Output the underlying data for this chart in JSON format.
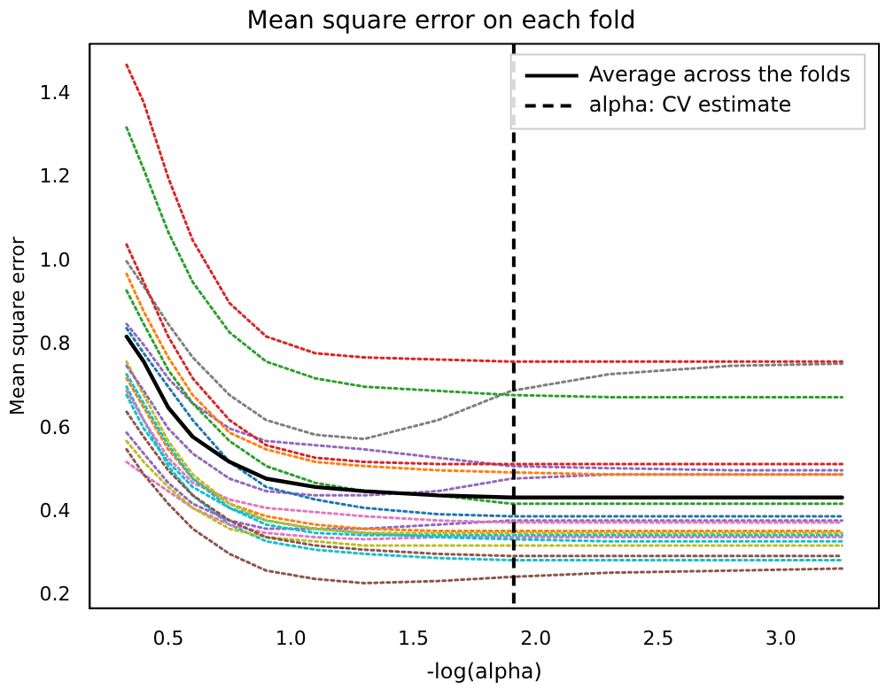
{
  "chart_data": {
    "type": "line",
    "title": "Mean square error on each fold",
    "xlabel": "-log(alpha)",
    "ylabel": "Mean square error",
    "x": [
      0.33,
      0.4,
      0.5,
      0.6,
      0.75,
      0.9,
      1.1,
      1.3,
      1.6,
      1.9,
      2.3,
      2.8,
      3.25
    ],
    "xlim": [
      0.18,
      3.4
    ],
    "xticks": [
      0.5,
      {
        "value": 1,
        "label": "1.0"
      },
      1.5,
      {
        "value": 2,
        "label": "2.0"
      },
      2.5,
      {
        "value": 3,
        "label": "3.0"
      }
    ],
    "ylim": [
      0.17,
      1.52
    ],
    "yticks": [
      0.2,
      0.4,
      0.6,
      0.8,
      {
        "value": 1,
        "label": "1.0"
      },
      1.2,
      1.4
    ],
    "grid": false,
    "legend": "top right",
    "marker": "none",
    "ref_lines": [
      {
        "axis": "x",
        "value": 1.91,
        "label": "alpha: CV estimate",
        "color": "#000000",
        "line_style": "dashed"
      }
    ],
    "series": [
      {
        "color": "#d62728",
        "line_style": "dotted",
        "values": [
          1.47,
          1.38,
          1.2,
          1.05,
          0.9,
          0.82,
          0.78,
          0.77,
          0.765,
          0.76,
          0.76,
          0.76,
          0.76
        ]
      },
      {
        "color": "#2ca02c",
        "line_style": "dotted",
        "values": [
          1.32,
          1.22,
          1.07,
          0.95,
          0.83,
          0.76,
          0.72,
          0.7,
          0.69,
          0.68,
          0.675,
          0.675,
          0.675
        ]
      },
      {
        "color": "#d62728",
        "line_style": "dotted",
        "values": [
          1.04,
          0.95,
          0.82,
          0.72,
          0.62,
          0.56,
          0.53,
          0.52,
          0.515,
          0.515,
          0.515,
          0.515,
          0.515
        ]
      },
      {
        "color": "#7f7f7f",
        "line_style": "dotted",
        "values": [
          1.0,
          0.94,
          0.85,
          0.77,
          0.68,
          0.62,
          0.585,
          0.575,
          0.62,
          0.69,
          0.73,
          0.75,
          0.755
        ]
      },
      {
        "color": "#ff7f0e",
        "line_style": "dotted",
        "values": [
          0.97,
          0.88,
          0.77,
          0.68,
          0.59,
          0.55,
          0.52,
          0.51,
          0.5,
          0.495,
          0.49,
          0.49,
          0.49
        ]
      },
      {
        "color": "#2ca02c",
        "line_style": "dotted",
        "values": [
          0.93,
          0.85,
          0.74,
          0.66,
          0.57,
          0.51,
          0.47,
          0.45,
          0.44,
          0.42,
          0.42,
          0.42,
          0.42
        ]
      },
      {
        "color": "#9467bd",
        "line_style": "dotted",
        "values": [
          0.85,
          0.8,
          0.72,
          0.66,
          0.6,
          0.57,
          0.56,
          0.55,
          0.53,
          0.51,
          0.505,
          0.5,
          0.5
        ]
      },
      {
        "color": "#1f77b4",
        "line_style": "dotted",
        "values": [
          0.84,
          0.78,
          0.7,
          0.62,
          0.52,
          0.46,
          0.43,
          0.41,
          0.395,
          0.39,
          0.39,
          0.39,
          0.39
        ]
      },
      {
        "color": "#9467bd",
        "line_style": "dotted",
        "values": [
          0.75,
          0.69,
          0.6,
          0.54,
          0.48,
          0.45,
          0.44,
          0.44,
          0.45,
          0.48,
          0.49,
          0.49,
          0.49
        ]
      },
      {
        "color": "#bcbd22",
        "line_style": "dotted",
        "values": [
          0.76,
          0.68,
          0.57,
          0.49,
          0.42,
          0.38,
          0.36,
          0.35,
          0.35,
          0.35,
          0.35,
          0.35,
          0.35
        ]
      },
      {
        "color": "#17becf",
        "line_style": "dotted",
        "values": [
          0.73,
          0.66,
          0.56,
          0.48,
          0.41,
          0.37,
          0.35,
          0.345,
          0.345,
          0.345,
          0.345,
          0.345,
          0.345
        ]
      },
      {
        "color": "#ff7f0e",
        "line_style": "dotted",
        "values": [
          0.72,
          0.65,
          0.55,
          0.48,
          0.42,
          0.39,
          0.37,
          0.36,
          0.355,
          0.355,
          0.355,
          0.355,
          0.355
        ]
      },
      {
        "color": "#17becf",
        "line_style": "dotted",
        "values": [
          0.68,
          0.6,
          0.52,
          0.46,
          0.41,
          0.38,
          0.36,
          0.35,
          0.34,
          0.335,
          0.33,
          0.33,
          0.33
        ]
      },
      {
        "color": "#e377c2",
        "line_style": "dotted",
        "values": [
          0.69,
          0.62,
          0.53,
          0.47,
          0.43,
          0.41,
          0.4,
          0.39,
          0.38,
          0.375,
          0.375,
          0.375,
          0.375
        ]
      },
      {
        "color": "#8c564b",
        "line_style": "dotted",
        "values": [
          0.64,
          0.58,
          0.5,
          0.44,
          0.38,
          0.34,
          0.32,
          0.31,
          0.3,
          0.295,
          0.295,
          0.295,
          0.295
        ]
      },
      {
        "color": "#9467bd",
        "line_style": "dotted",
        "values": [
          0.59,
          0.54,
          0.47,
          0.42,
          0.38,
          0.36,
          0.36,
          0.36,
          0.37,
          0.38,
          0.38,
          0.38,
          0.38
        ]
      },
      {
        "color": "#bcbd22",
        "line_style": "dotted",
        "values": [
          0.57,
          0.52,
          0.46,
          0.41,
          0.36,
          0.34,
          0.33,
          0.32,
          0.32,
          0.32,
          0.32,
          0.32,
          0.32
        ]
      },
      {
        "color": "#8c564b",
        "line_style": "dotted",
        "values": [
          0.55,
          0.49,
          0.42,
          0.36,
          0.3,
          0.26,
          0.24,
          0.23,
          0.235,
          0.245,
          0.255,
          0.26,
          0.265
        ]
      },
      {
        "color": "#e377c2",
        "line_style": "dotted",
        "values": [
          0.52,
          0.49,
          0.45,
          0.41,
          0.37,
          0.35,
          0.34,
          0.335,
          0.34,
          0.34,
          0.34,
          0.34,
          0.34
        ]
      },
      {
        "color": "#17becf",
        "line_style": "dotted",
        "values": [
          0.7,
          0.62,
          0.51,
          0.44,
          0.37,
          0.33,
          0.31,
          0.3,
          0.29,
          0.285,
          0.285,
          0.285,
          0.285
        ]
      },
      {
        "name": "Average across the folds",
        "color": "#000000",
        "line_style": "solid",
        "values": [
          0.82,
          0.76,
          0.65,
          0.58,
          0.52,
          0.48,
          0.46,
          0.45,
          0.44,
          0.435,
          0.435,
          0.435,
          0.435
        ]
      }
    ]
  }
}
